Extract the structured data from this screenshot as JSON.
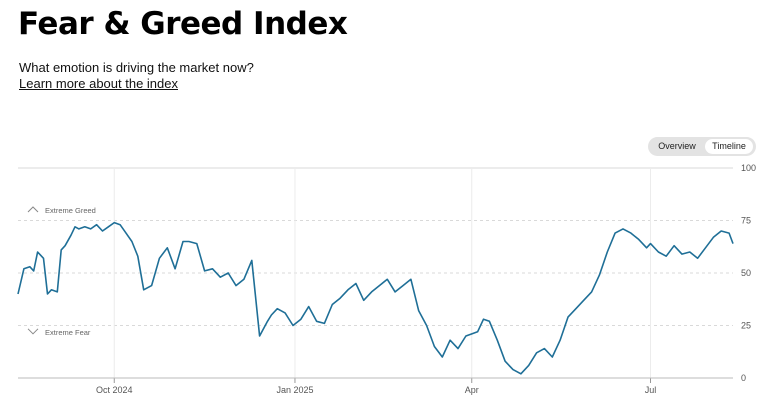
{
  "header": {
    "title": "Fear & Greed Index",
    "subtitle": "What emotion is driving the market now?",
    "learn_more": "Learn more about the index"
  },
  "view_toggle": {
    "options": [
      "Overview",
      "Timeline"
    ],
    "selected": "Timeline"
  },
  "colors": {
    "line": "#1f6f97",
    "grid": "#d9d9d9",
    "axis_text": "#555555"
  },
  "chart_data": {
    "type": "line",
    "ylim": [
      0,
      100
    ],
    "y_ticks": [
      "0",
      "25",
      "50",
      "75",
      "100"
    ],
    "x_ticks": [
      {
        "label": "Oct 2024",
        "date": "2024-10-01"
      },
      {
        "label": "Jan 2025",
        "date": "2025-01-01"
      },
      {
        "label": "Apr",
        "date": "2025-04-01"
      },
      {
        "label": "Jul",
        "date": "2025-07-01"
      }
    ],
    "xlim": [
      "2024-08-13",
      "2025-08-12"
    ],
    "zones": [
      {
        "label": "Extreme Greed",
        "icon": "chevron-up-icon",
        "value": 80
      },
      {
        "label": "Extreme Fear",
        "icon": "chevron-down-icon",
        "value": 22
      }
    ],
    "grid": true,
    "series": [
      {
        "x": [
          "2024-08-13",
          "2024-08-16",
          "2024-08-19",
          "2024-08-21",
          "2024-08-23",
          "2024-08-26",
          "2024-08-28",
          "2024-08-30",
          "2024-09-02",
          "2024-09-04",
          "2024-09-06",
          "2024-09-09",
          "2024-09-11",
          "2024-09-13",
          "2024-09-16",
          "2024-09-19",
          "2024-09-22",
          "2024-09-25",
          "2024-09-28",
          "2024-10-01",
          "2024-10-04",
          "2024-10-07",
          "2024-10-10",
          "2024-10-13",
          "2024-10-16",
          "2024-10-20",
          "2024-10-24",
          "2024-10-28",
          "2024-11-01",
          "2024-11-05",
          "2024-11-08",
          "2024-11-12",
          "2024-11-16",
          "2024-11-20",
          "2024-11-24",
          "2024-11-28",
          "2024-12-02",
          "2024-12-06",
          "2024-12-10",
          "2024-12-14",
          "2024-12-18",
          "2024-12-20",
          "2024-12-23",
          "2024-12-27",
          "2024-12-31",
          "2025-01-04",
          "2025-01-08",
          "2025-01-12",
          "2025-01-16",
          "2025-01-20",
          "2025-01-24",
          "2025-01-28",
          "2025-02-01",
          "2025-02-05",
          "2025-02-09",
          "2025-02-13",
          "2025-02-17",
          "2025-02-21",
          "2025-02-25",
          "2025-03-01",
          "2025-03-05",
          "2025-03-09",
          "2025-03-13",
          "2025-03-17",
          "2025-03-21",
          "2025-03-25",
          "2025-03-29",
          "2025-04-01",
          "2025-04-04",
          "2025-04-07",
          "2025-04-10",
          "2025-04-14",
          "2025-04-18",
          "2025-04-22",
          "2025-04-26",
          "2025-04-30",
          "2025-05-04",
          "2025-05-08",
          "2025-05-12",
          "2025-05-16",
          "2025-05-20",
          "2025-05-24",
          "2025-05-28",
          "2025-06-01",
          "2025-06-05",
          "2025-06-09",
          "2025-06-13",
          "2025-06-17",
          "2025-06-21",
          "2025-06-25",
          "2025-06-29",
          "2025-07-01",
          "2025-07-05",
          "2025-07-09",
          "2025-07-13",
          "2025-07-17",
          "2025-07-21",
          "2025-07-25",
          "2025-07-29",
          "2025-08-02",
          "2025-08-06",
          "2025-08-10",
          "2025-08-12"
        ],
        "values": [
          40,
          52,
          53,
          51,
          60,
          57,
          40,
          42,
          41,
          61,
          63,
          68,
          72,
          71,
          72,
          71,
          73,
          70,
          72,
          74,
          73,
          69,
          65,
          58,
          42,
          44,
          57,
          62,
          52,
          65,
          65,
          64,
          51,
          52,
          48,
          50,
          44,
          47,
          56,
          20,
          27,
          30,
          33,
          31,
          25,
          28,
          34,
          27,
          26,
          35,
          38,
          42,
          45,
          37,
          41,
          44,
          47,
          41,
          44,
          47,
          32,
          25,
          15,
          10,
          18,
          14,
          20,
          21,
          22,
          28,
          27,
          18,
          8,
          4,
          2,
          6,
          12,
          14,
          10,
          18,
          29,
          33,
          37,
          41,
          49,
          60,
          69,
          71,
          69,
          66,
          62,
          64,
          60,
          58,
          63,
          59,
          60,
          57,
          62,
          67,
          70,
          69,
          64
        ]
      }
    ]
  }
}
